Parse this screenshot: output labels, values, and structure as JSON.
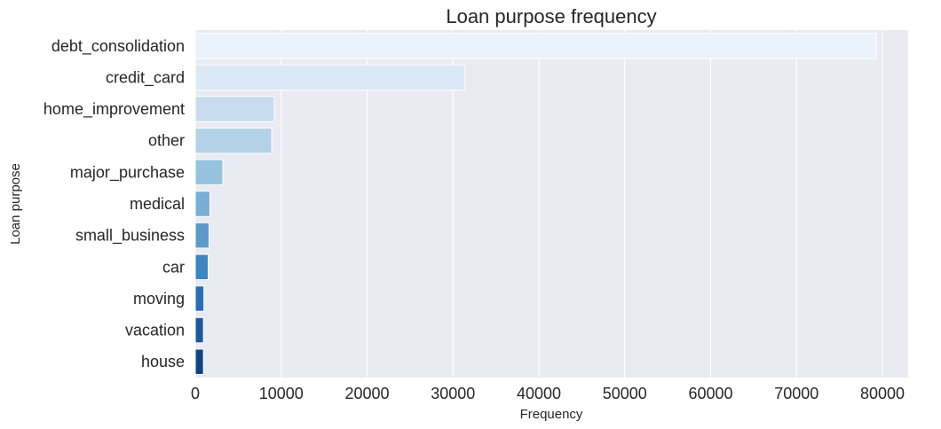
{
  "chart_data": {
    "type": "bar",
    "orientation": "horizontal",
    "title": "Loan purpose frequency",
    "xlabel": "Frequency",
    "ylabel": "Loan purpose",
    "categories": [
      "debt_consolidation",
      "credit_card",
      "home_improvement",
      "other",
      "major_purchase",
      "medical",
      "small_business",
      "car",
      "moving",
      "vacation",
      "house"
    ],
    "values": [
      79300,
      31400,
      9200,
      8900,
      3200,
      1700,
      1600,
      1500,
      1000,
      950,
      950
    ],
    "xlim": [
      0,
      83000
    ],
    "xticks": [
      0,
      10000,
      20000,
      30000,
      40000,
      50000,
      60000,
      70000,
      80000
    ],
    "xtick_labels": [
      "0",
      "10000",
      "20000",
      "30000",
      "40000",
      "50000",
      "60000",
      "70000",
      "80000"
    ],
    "grid": true,
    "colors": [
      "#eaf2fb",
      "#dbe8f5",
      "#c9dcef",
      "#b3d2e8",
      "#97c3df",
      "#79afd6",
      "#5b9bcc",
      "#3f85c0",
      "#2b6fb2",
      "#1c599e",
      "#0f4585"
    ],
    "background": "#eaeaf2"
  }
}
